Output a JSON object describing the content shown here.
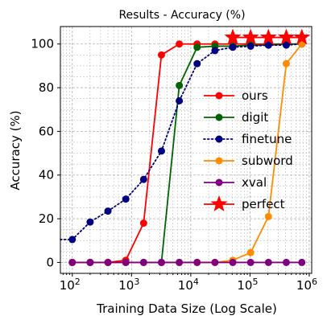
{
  "chart_data": {
    "type": "line",
    "title": "Results - Accuracy (%)",
    "xlabel": "Training Data Size (Log Scale)",
    "ylabel": "Accuracy (%)",
    "xscale": "log",
    "xlim": [
      63,
      1100000
    ],
    "ylim": [
      -5,
      108
    ],
    "grid": true,
    "legend_position": "center-right",
    "x_ticks": [
      {
        "value": 100,
        "base": "10",
        "exp": "2"
      },
      {
        "value": 1000,
        "base": "10",
        "exp": "3"
      },
      {
        "value": 10000,
        "base": "10",
        "exp": "4"
      },
      {
        "value": 100000,
        "base": "10",
        "exp": "5"
      },
      {
        "value": 1000000,
        "base": "10",
        "exp": "6"
      }
    ],
    "y_ticks": [
      "0",
      "20",
      "40",
      "60",
      "80",
      "100"
    ],
    "series": [
      {
        "name": "ours",
        "color": "#ff0000",
        "linestyle": "solid",
        "marker": "circle",
        "points": [
          [
            100,
            0
          ],
          [
            200,
            0
          ],
          [
            400,
            0
          ],
          [
            800,
            1
          ],
          [
            1600,
            18
          ],
          [
            3200,
            95
          ],
          [
            6400,
            100
          ],
          [
            12800,
            100
          ],
          [
            25600,
            100
          ],
          [
            51200,
            100
          ],
          [
            102400,
            100
          ],
          [
            204800,
            100
          ],
          [
            409600,
            100
          ],
          [
            750000,
            100
          ]
        ]
      },
      {
        "name": "digit",
        "color": "#006400",
        "linestyle": "solid",
        "marker": "circle",
        "points": [
          [
            100,
            0
          ],
          [
            200,
            0
          ],
          [
            400,
            0
          ],
          [
            800,
            0
          ],
          [
            1600,
            0
          ],
          [
            3200,
            0
          ],
          [
            6400,
            81
          ],
          [
            12800,
            98.5
          ],
          [
            25600,
            99
          ],
          [
            51200,
            99
          ],
          [
            102400,
            99.5
          ],
          [
            204800,
            99.5
          ],
          [
            409600,
            100
          ],
          [
            750000,
            100
          ]
        ]
      },
      {
        "name": "finetune",
        "color": "#000080",
        "linestyle": "dotted",
        "marker": "circle",
        "points": [
          [
            63,
            10.5
          ],
          [
            100,
            10.5
          ],
          [
            200,
            18.5
          ],
          [
            400,
            23.5
          ],
          [
            800,
            29
          ],
          [
            1600,
            38
          ],
          [
            3200,
            51
          ],
          [
            6400,
            74
          ],
          [
            12800,
            91
          ],
          [
            25600,
            97
          ],
          [
            51200,
            98.5
          ],
          [
            102400,
            99
          ],
          [
            204800,
            99.5
          ],
          [
            409600,
            99.5
          ],
          [
            750000,
            100
          ]
        ]
      },
      {
        "name": "subword",
        "color": "#ff8c00",
        "linestyle": "solid",
        "marker": "circle",
        "points": [
          [
            100,
            0
          ],
          [
            200,
            0
          ],
          [
            400,
            0
          ],
          [
            800,
            0
          ],
          [
            1600,
            0
          ],
          [
            3200,
            0
          ],
          [
            6400,
            0
          ],
          [
            12800,
            0
          ],
          [
            25600,
            0
          ],
          [
            51200,
            1
          ],
          [
            102400,
            4.5
          ],
          [
            204800,
            21
          ],
          [
            409600,
            91
          ],
          [
            750000,
            100
          ]
        ]
      },
      {
        "name": "xval",
        "color": "#800080",
        "linestyle": "solid",
        "marker": "circle",
        "points": [
          [
            100,
            0
          ],
          [
            200,
            0
          ],
          [
            400,
            0
          ],
          [
            800,
            0
          ],
          [
            1600,
            0
          ],
          [
            3200,
            0
          ],
          [
            6400,
            0
          ],
          [
            12800,
            0
          ],
          [
            25600,
            0
          ],
          [
            51200,
            0
          ],
          [
            102400,
            0
          ],
          [
            204800,
            0
          ],
          [
            409600,
            0
          ],
          [
            750000,
            0
          ]
        ]
      },
      {
        "name": "perfect",
        "color": "#ff0000",
        "linestyle": "solid",
        "marker": "star",
        "points": [
          [
            51200,
            103
          ],
          [
            102400,
            103
          ],
          [
            204800,
            103
          ],
          [
            409600,
            103
          ],
          [
            750000,
            103
          ]
        ]
      }
    ]
  }
}
